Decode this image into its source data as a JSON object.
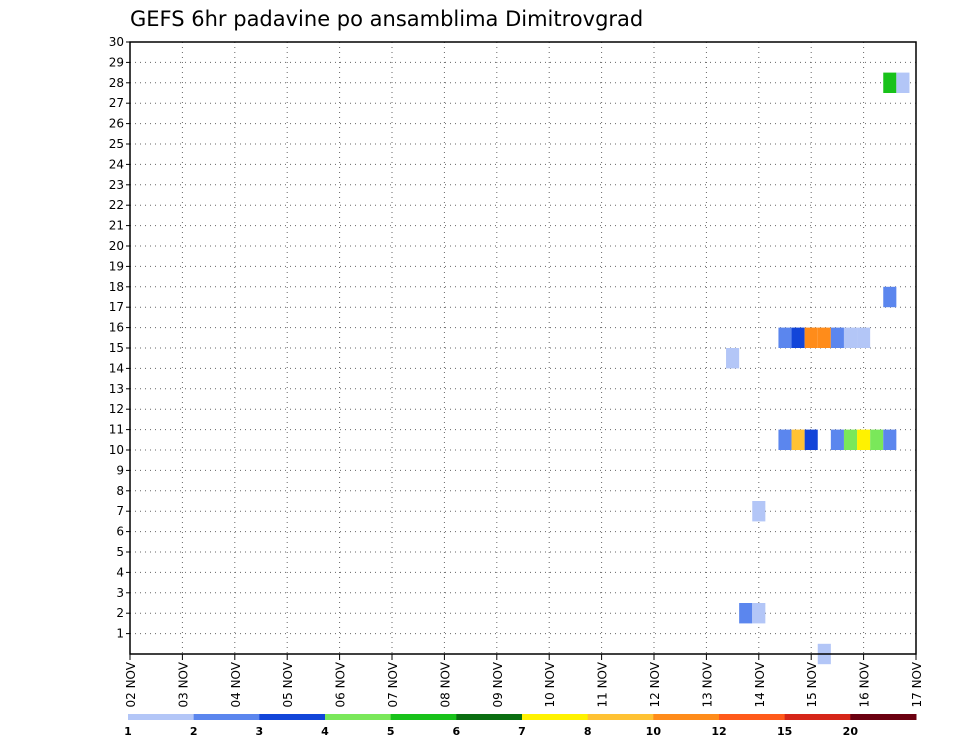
{
  "chart_data": {
    "type": "heatmap",
    "title": "GEFS 6hr padavine po ansamblima Dimitrovgrad",
    "xlabel": "",
    "ylabel": "",
    "x_tick_labels": [
      "02 NOV",
      "03 NOV",
      "04 NOV",
      "05 NOV",
      "06 NOV",
      "07 NOV",
      "08 NOV",
      "09 NOV",
      "10 NOV",
      "11 NOV",
      "12 NOV",
      "13 NOV",
      "14 NOV",
      "15 NOV",
      "16 NOV",
      "17 NOV"
    ],
    "y_tick_labels": [
      "1",
      "2",
      "3",
      "4",
      "5",
      "6",
      "7",
      "8",
      "9",
      "10",
      "11",
      "12",
      "13",
      "14",
      "15",
      "16",
      "17",
      "18",
      "19",
      "20",
      "21",
      "22",
      "23",
      "24",
      "25",
      "26",
      "27",
      "28",
      "29",
      "30"
    ],
    "xlim_days": [
      0,
      15
    ],
    "ylim": [
      0,
      30
    ],
    "grid": true,
    "colorbar": {
      "labels": [
        "1",
        "2",
        "3",
        "4",
        "5",
        "6",
        "7",
        "8",
        "10",
        "12",
        "15",
        "20"
      ],
      "colors": [
        "#b3c6f7",
        "#5b86ee",
        "#1245d9",
        "#7ae85a",
        "#18c21a",
        "#0b6e11",
        "#fff200",
        "#ffc233",
        "#ff8c1a",
        "#ff5a1a",
        "#d62618",
        "#6b0010"
      ]
    },
    "cells": [
      {
        "x": 11.5,
        "member": 14.5,
        "level": 0
      },
      {
        "x": 11.75,
        "member": 2,
        "level": 1
      },
      {
        "x": 12.0,
        "member": 2,
        "level": 0
      },
      {
        "x": 12.0,
        "member": 7,
        "level": 0
      },
      {
        "x": 12.5,
        "member": 15.5,
        "level": 1
      },
      {
        "x": 12.75,
        "member": 15.5,
        "level": 2
      },
      {
        "x": 13.0,
        "member": 15.5,
        "level": 8
      },
      {
        "x": 13.25,
        "member": 15.5,
        "level": 8
      },
      {
        "x": 13.5,
        "member": 15.5,
        "level": 1
      },
      {
        "x": 13.75,
        "member": 15.5,
        "level": 0
      },
      {
        "x": 14.0,
        "member": 15.5,
        "level": 0
      },
      {
        "x": 12.5,
        "member": 10.5,
        "level": 1
      },
      {
        "x": 12.75,
        "member": 10.5,
        "level": 7
      },
      {
        "x": 13.0,
        "member": 10.5,
        "level": 2
      },
      {
        "x": 13.5,
        "member": 10.5,
        "level": 1
      },
      {
        "x": 13.75,
        "member": 10.5,
        "level": 3
      },
      {
        "x": 14.0,
        "member": 10.5,
        "level": 6
      },
      {
        "x": 14.25,
        "member": 10.5,
        "level": 3
      },
      {
        "x": 14.5,
        "member": 10.5,
        "level": 1
      },
      {
        "x": 13.25,
        "member": 0,
        "level": 0
      },
      {
        "x": 14.5,
        "member": 17.5,
        "level": 1
      },
      {
        "x": 14.5,
        "member": 28,
        "level": 4
      },
      {
        "x": 14.75,
        "member": 28,
        "level": 0
      }
    ]
  }
}
